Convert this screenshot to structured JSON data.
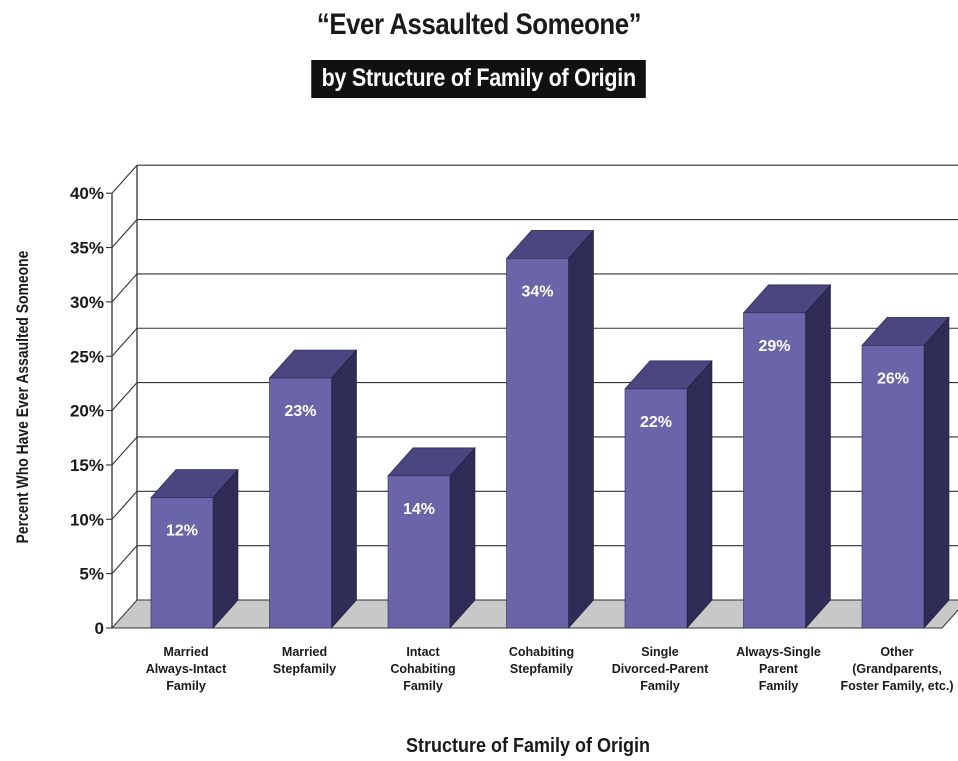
{
  "header": {
    "title": "“Ever Assaulted Someone”",
    "subtitle": "by Structure of Family of Origin"
  },
  "colors": {
    "bar_front": "#6a64a8",
    "bar_top": "#4a4680",
    "bar_side": "#2f2c56",
    "floor": "#c8c8c8",
    "text": "#1a1a1a"
  },
  "chart_data": {
    "type": "bar",
    "title": "“Ever Assaulted Someone”",
    "subtitle": "by Structure of Family of Origin",
    "xlabel": "Structure of Family of Origin",
    "ylabel": "Percent Who Have Ever Assaulted Someone",
    "ylim": [
      0,
      40
    ],
    "grid": true,
    "y_ticks": [
      "0",
      "5%",
      "10%",
      "15%",
      "20%",
      "25%",
      "30%",
      "35%",
      "40%"
    ],
    "categories": [
      [
        "Married",
        "Always-Intact",
        "Family"
      ],
      [
        "Married",
        "Stepfamily"
      ],
      [
        "Intact",
        "Cohabiting",
        "Family"
      ],
      [
        "Cohabiting",
        "Stepfamily"
      ],
      [
        "Single",
        "Divorced-Parent",
        "Family"
      ],
      [
        "Always-Single",
        "Parent",
        "Family"
      ],
      [
        "Other",
        "(Grandparents,",
        "Foster Family, etc.)"
      ]
    ],
    "values": [
      12,
      23,
      14,
      34,
      22,
      29,
      26
    ],
    "data_labels": [
      "12%",
      "23%",
      "14%",
      "34%",
      "22%",
      "29%",
      "26%"
    ]
  }
}
